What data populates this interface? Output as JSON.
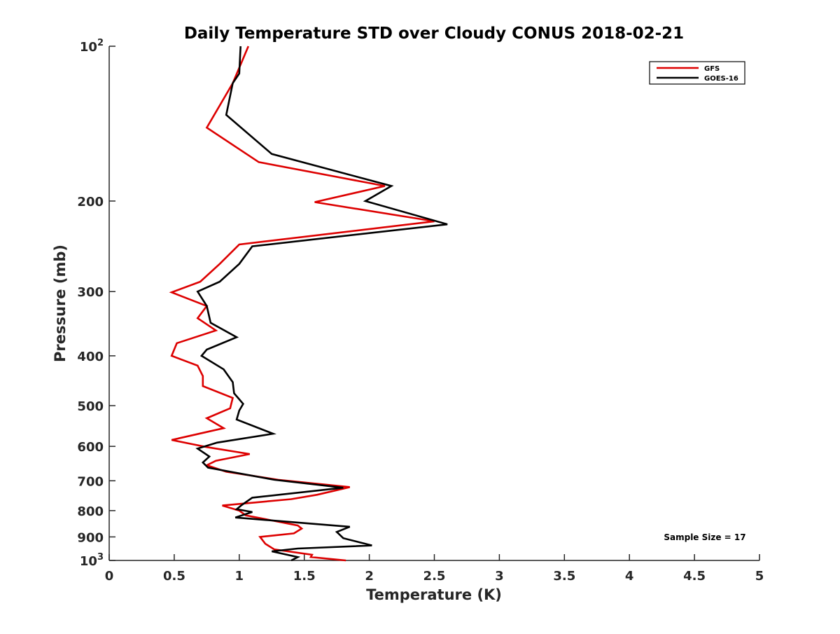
{
  "chart_data": {
    "type": "line",
    "title": "Daily Temperature STD over Cloudy CONUS 2018-02-21",
    "xlabel": "Temperature (K)",
    "ylabel": "Pressure (mb)",
    "xlim": [
      0,
      5
    ],
    "ylim": [
      100,
      1000
    ],
    "y_scale": "log",
    "y_reversed": true,
    "x_ticks": [
      0,
      0.5,
      1,
      1.5,
      2,
      2.5,
      3,
      3.5,
      4,
      4.5,
      5
    ],
    "x_tick_labels": [
      "0",
      "0.5",
      "1",
      "1.5",
      "2",
      "2.5",
      "3",
      "3.5",
      "4",
      "4.5",
      "5"
    ],
    "y_ticks": [
      200,
      300,
      400,
      500,
      600,
      700,
      800,
      900
    ],
    "y_tick_labels": [
      "200",
      "300",
      "400",
      "500",
      "600",
      "700",
      "800",
      "900"
    ],
    "y_end_ticks": [
      {
        "value": 100,
        "base": "10",
        "exp": "2"
      },
      {
        "value": 1000,
        "base": "10",
        "exp": "3"
      }
    ],
    "grid": false,
    "legend_position": "top-right",
    "annotation": "Sample Size = 17",
    "series": [
      {
        "name": "GFS",
        "color": "#dd0000",
        "points": [
          [
            1.07,
            100
          ],
          [
            0.95,
            118
          ],
          [
            0.75,
            144
          ],
          [
            1.15,
            168
          ],
          [
            2.12,
            187
          ],
          [
            1.58,
            201
          ],
          [
            2.5,
            219
          ],
          [
            1.0,
            243
          ],
          [
            0.85,
            265
          ],
          [
            0.7,
            287
          ],
          [
            0.48,
            301
          ],
          [
            0.75,
            320
          ],
          [
            0.68,
            338
          ],
          [
            0.82,
            357
          ],
          [
            0.52,
            378
          ],
          [
            0.48,
            400
          ],
          [
            0.68,
            418
          ],
          [
            0.72,
            438
          ],
          [
            0.72,
            458
          ],
          [
            0.95,
            483
          ],
          [
            0.93,
            506
          ],
          [
            0.75,
            529
          ],
          [
            0.88,
            553
          ],
          [
            0.48,
            583
          ],
          [
            0.75,
            602
          ],
          [
            1.08,
            621
          ],
          [
            0.82,
            640
          ],
          [
            0.75,
            653
          ],
          [
            0.9,
            672
          ],
          [
            1.3,
            697
          ],
          [
            1.85,
            720
          ],
          [
            1.6,
            745
          ],
          [
            1.4,
            760
          ],
          [
            0.87,
            782
          ],
          [
            1.0,
            800
          ],
          [
            1.05,
            817
          ],
          [
            1.45,
            855
          ],
          [
            1.48,
            867
          ],
          [
            1.42,
            886
          ],
          [
            1.16,
            900
          ],
          [
            1.2,
            928
          ],
          [
            1.27,
            952
          ],
          [
            1.56,
            975
          ],
          [
            1.55,
            985
          ],
          [
            1.82,
            1000
          ]
        ]
      },
      {
        "name": "GOES-16",
        "color": "#000000",
        "points": [
          [
            1.01,
            100
          ],
          [
            1.0,
            113
          ],
          [
            0.95,
            118
          ],
          [
            0.9,
            136
          ],
          [
            1.25,
            162
          ],
          [
            2.17,
            187
          ],
          [
            1.97,
            200
          ],
          [
            2.6,
            222
          ],
          [
            1.1,
            245
          ],
          [
            1.0,
            265
          ],
          [
            0.85,
            287
          ],
          [
            0.68,
            300
          ],
          [
            0.75,
            320
          ],
          [
            0.78,
            345
          ],
          [
            0.98,
            368
          ],
          [
            0.75,
            389
          ],
          [
            0.71,
            400
          ],
          [
            0.88,
            425
          ],
          [
            0.95,
            450
          ],
          [
            0.96,
            473
          ],
          [
            1.03,
            496
          ],
          [
            1.0,
            511
          ],
          [
            0.98,
            532
          ],
          [
            1.26,
            567
          ],
          [
            0.83,
            590
          ],
          [
            0.68,
            606
          ],
          [
            0.77,
            628
          ],
          [
            0.72,
            645
          ],
          [
            0.76,
            660
          ],
          [
            1.27,
            697
          ],
          [
            1.8,
            722
          ],
          [
            1.1,
            755
          ],
          [
            1.02,
            780
          ],
          [
            0.98,
            795
          ],
          [
            1.1,
            805
          ],
          [
            0.97,
            825
          ],
          [
            1.6,
            850
          ],
          [
            1.85,
            860
          ],
          [
            1.75,
            880
          ],
          [
            1.8,
            905
          ],
          [
            2.02,
            935
          ],
          [
            1.45,
            948
          ],
          [
            1.25,
            960
          ],
          [
            1.45,
            985
          ],
          [
            1.4,
            1000
          ]
        ]
      }
    ]
  }
}
